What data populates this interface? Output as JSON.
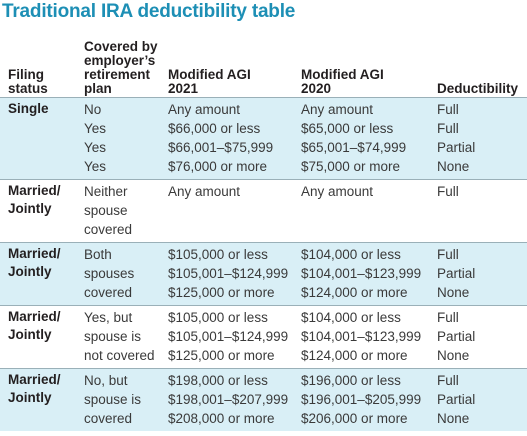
{
  "title": "Traditional IRA deductibility table",
  "headers": {
    "filing_status": [
      "Filing",
      "status"
    ],
    "covered": [
      "Covered by",
      "employer’s",
      "retirement",
      "plan"
    ],
    "agi_2021": [
      "Modified AGI",
      "2021"
    ],
    "agi_2020": [
      "Modified AGI",
      "2020"
    ],
    "deductibility": [
      "Deductibility"
    ]
  },
  "groups": [
    {
      "filing_status": [
        "Single"
      ],
      "shaded": true,
      "covered": [
        "No",
        "Yes",
        "Yes",
        "Yes"
      ],
      "agi_2021": [
        "Any amount",
        "$66,000 or less",
        "$66,001–$75,999",
        "$76,000 or more"
      ],
      "agi_2020": [
        "Any amount",
        "$65,000 or less",
        "$65,001–$74,999",
        "$75,000 or more"
      ],
      "deductibility": [
        "Full",
        "Full",
        "Partial",
        "None"
      ]
    },
    {
      "filing_status": [
        "Married/",
        "Jointly"
      ],
      "shaded": false,
      "covered": [
        "Neither",
        "spouse",
        "covered"
      ],
      "agi_2021": [
        "Any amount"
      ],
      "agi_2020": [
        "Any amount"
      ],
      "deductibility": [
        "Full"
      ]
    },
    {
      "filing_status": [
        "Married/",
        "Jointly"
      ],
      "shaded": true,
      "covered": [
        "Both",
        "spouses",
        "covered"
      ],
      "agi_2021": [
        "$105,000 or less",
        "$105,001–$124,999",
        "$125,000 or more"
      ],
      "agi_2020": [
        "$104,000 or less",
        "$104,001–$123,999",
        "$124,000 or more"
      ],
      "deductibility": [
        "Full",
        "Partial",
        "None"
      ]
    },
    {
      "filing_status": [
        "Married/",
        "Jointly"
      ],
      "shaded": false,
      "covered": [
        "Yes, but",
        "spouse is",
        "not covered"
      ],
      "agi_2021": [
        "$105,000 or less",
        "$105,001–$124,999",
        "$125,000 or more"
      ],
      "agi_2020": [
        "$104,000 or less",
        "$104,001–$123,999",
        "$124,000 or more"
      ],
      "deductibility": [
        "Full",
        "Partial",
        "None"
      ]
    },
    {
      "filing_status": [
        "Married/",
        "Jointly"
      ],
      "shaded": true,
      "covered": [
        "No, but",
        "spouse is",
        "covered"
      ],
      "agi_2021": [
        "$198,000 or less",
        "$198,001–$207,999",
        "$208,000 or more"
      ],
      "agi_2020": [
        "$196,000 or less",
        "$196,001–$205,999",
        "$206,000 or more"
      ],
      "deductibility": [
        "Full",
        "Partial",
        "None"
      ]
    }
  ]
}
